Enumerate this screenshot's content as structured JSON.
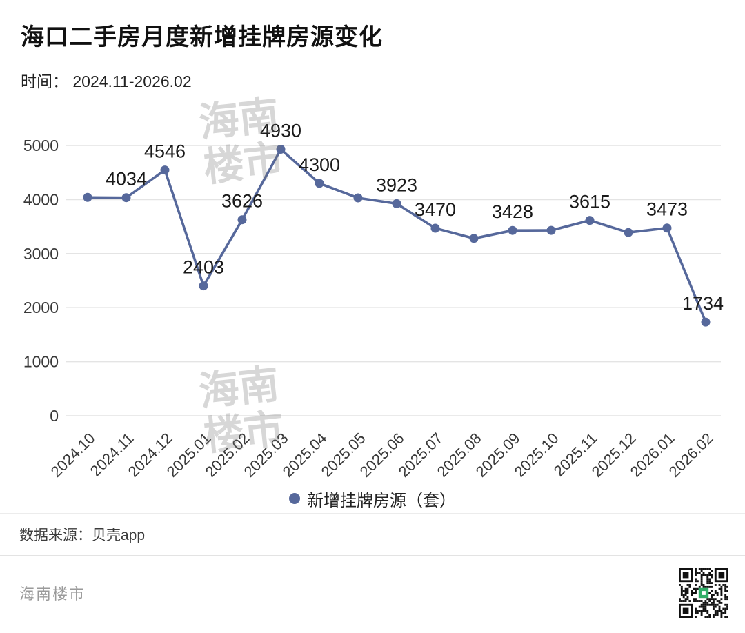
{
  "header": {
    "title": "海口二手房月度新增挂牌房源变化",
    "subtitle": "时间： 2024.11-2026.02"
  },
  "watermark": {
    "text": "海南楼市"
  },
  "chart_data": {
    "type": "line",
    "title": "海口二手房月度新增挂牌房源变化",
    "categories": [
      "2024.10",
      "2024.11",
      "2024.12",
      "2025.01",
      "2025.02",
      "2025.03",
      "2025.04",
      "2025.05",
      "2025.06",
      "2025.07",
      "2025.08",
      "2025.09",
      "2025.10",
      "2025.11",
      "2025.12",
      "2026.01",
      "2026.02"
    ],
    "series": [
      {
        "name": "新增挂牌房源（套）",
        "values": [
          4040,
          4034,
          4546,
          2403,
          3626,
          4930,
          4300,
          4030,
          3923,
          3470,
          3280,
          3428,
          3430,
          3615,
          3390,
          3473,
          1734
        ]
      }
    ],
    "point_labels": [
      "",
      "4034",
      "4546",
      "2403",
      "3626",
      "4930",
      "4300",
      "",
      "3923",
      "3470",
      "",
      "3428",
      "",
      "3615",
      "",
      "3473",
      "1734"
    ],
    "xlabel": "",
    "ylabel": "",
    "ylim": [
      0,
      5000
    ],
    "yticks": [
      0,
      1000,
      2000,
      3000,
      4000,
      5000
    ],
    "grid": true,
    "legend_position": "bottom",
    "line_color": "#56689b"
  },
  "legend": {
    "label": "新增挂牌房源（套）"
  },
  "footer": {
    "source": "数据来源：贝壳app",
    "brand": "海南楼市"
  },
  "colors": {
    "line": "#56689b",
    "grid": "#e4e4e4",
    "axis_text": "#383838",
    "label_text": "#1a1a1a",
    "background": "#ffffff"
  }
}
